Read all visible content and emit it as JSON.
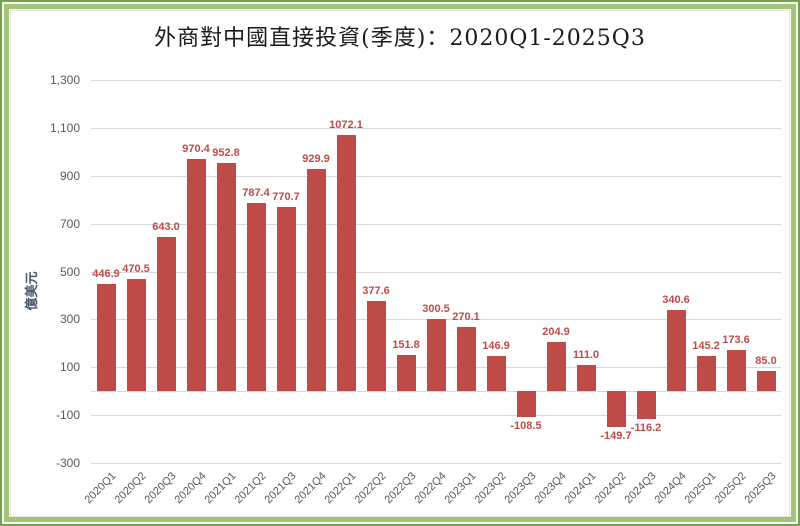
{
  "chart_data": {
    "type": "bar",
    "title": "外商對中國直接投資(季度)：2020Q1-2025Q3",
    "ylabel": "億美元",
    "xlabel": "",
    "categories": [
      "2020Q1",
      "2020Q2",
      "2020Q3",
      "2020Q4",
      "2021Q1",
      "2021Q2",
      "2021Q3",
      "2021Q4",
      "2022Q1",
      "2022Q2",
      "2022Q3",
      "2022Q4",
      "2023Q1",
      "2023Q2",
      "2023Q3",
      "2023Q4",
      "2024Q1",
      "2024Q2",
      "2024Q3",
      "2024Q4",
      "2025Q1",
      "2025Q2",
      "2025Q3"
    ],
    "values": [
      446.9,
      470.5,
      643.0,
      970.4,
      952.8,
      787.4,
      770.7,
      929.9,
      1072.1,
      377.6,
      151.8,
      300.5,
      270.1,
      146.9,
      -108.5,
      204.9,
      111.0,
      -149.7,
      -116.2,
      340.6,
      145.2,
      173.6,
      85.0
    ],
    "data_labels": [
      "446.9",
      "470.5",
      "643.0",
      "970.4",
      "952.8",
      "787.4",
      "770.7",
      "929.9",
      "1072.1",
      "377.6",
      "151.8",
      "300.5",
      "270.1",
      "146.9",
      "-108.5",
      "204.9",
      "111.0",
      "-149.7",
      "-116.2",
      "340.6",
      "145.2",
      "173.6",
      "85.0"
    ],
    "ylim": [
      -300,
      1300
    ],
    "yticks": [
      -300,
      -100,
      100,
      300,
      500,
      700,
      900,
      1100,
      1300
    ],
    "ytick_labels": [
      "-300",
      "-100",
      "100",
      "300",
      "500",
      "700",
      "900",
      "1,100",
      "1,300"
    ],
    "grid": true,
    "legend": "none",
    "colors": {
      "bar": "#BE4B48",
      "data_label": "#BE4B48",
      "axis_text": "#595959",
      "y_title_text": "#44546A",
      "grid_line": "#D9D9D9",
      "frame_outer": "#74A24B",
      "frame_inner": "#A2C479",
      "title_text": "#1a1a1a"
    }
  }
}
